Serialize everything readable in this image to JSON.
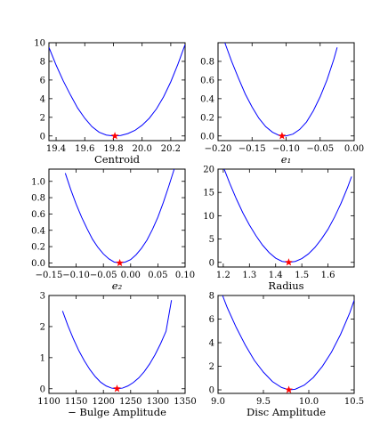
{
  "chart_data": [
    {
      "type": "line",
      "xlabel": "Centroid",
      "ylabel": "",
      "xlim": [
        19.35,
        20.3
      ],
      "ylim": [
        -0.5,
        10
      ],
      "xticks": [
        19.4,
        19.6,
        19.8,
        20.0,
        20.2
      ],
      "xtick_labels": [
        "19.4",
        "19.6",
        "19.8",
        "20.0",
        "20.2"
      ],
      "yticks": [
        0,
        2,
        4,
        6,
        8,
        10
      ],
      "ytick_labels": [
        "0",
        "2",
        "4",
        "6",
        "8",
        "10"
      ],
      "series": [
        {
          "x": [
            19.35,
            19.4,
            19.45,
            19.5,
            19.55,
            19.6,
            19.65,
            19.7,
            19.75,
            19.8,
            19.85,
            19.9,
            19.95,
            20.0,
            20.05,
            20.1,
            20.15,
            20.2,
            20.25,
            20.3
          ],
          "y": [
            9.5,
            7.6,
            5.9,
            4.4,
            3.0,
            1.9,
            1.0,
            0.4,
            0.1,
            0.0,
            0.05,
            0.25,
            0.6,
            1.15,
            1.9,
            2.9,
            4.2,
            5.8,
            7.7,
            9.8
          ]
        }
      ],
      "minimum": {
        "x": 19.81,
        "y": 0.0
      },
      "colors": {
        "curve": "#0000ff",
        "marker": "#ff0000"
      }
    },
    {
      "type": "line",
      "xlabel": "e₁",
      "ylabel": "",
      "xlim": [
        -0.2,
        0.0
      ],
      "ylim": [
        -0.05,
        1.0
      ],
      "xticks": [
        -0.2,
        -0.15,
        -0.1,
        -0.05,
        0.0
      ],
      "xtick_labels": [
        "−0.20",
        "−0.15",
        "−0.10",
        "−0.05",
        "0.00"
      ],
      "yticks": [
        0.0,
        0.2,
        0.4,
        0.6,
        0.8
      ],
      "ytick_labels": [
        "0.0",
        "0.2",
        "0.4",
        "0.6",
        "0.8"
      ],
      "series": [
        {
          "x": [
            -0.19,
            -0.18,
            -0.17,
            -0.16,
            -0.15,
            -0.14,
            -0.13,
            -0.12,
            -0.11,
            -0.1,
            -0.09,
            -0.08,
            -0.07,
            -0.06,
            -0.05,
            -0.04,
            -0.03,
            -0.025
          ],
          "y": [
            1.0,
            0.8,
            0.62,
            0.45,
            0.31,
            0.19,
            0.1,
            0.04,
            0.005,
            0.0,
            0.02,
            0.07,
            0.15,
            0.27,
            0.42,
            0.6,
            0.82,
            0.95
          ]
        }
      ],
      "minimum": {
        "x": -0.106,
        "y": 0.0
      },
      "colors": {
        "curve": "#0000ff",
        "marker": "#ff0000"
      }
    },
    {
      "type": "line",
      "xlabel": "e₂",
      "ylabel": "",
      "xlim": [
        -0.15,
        0.1
      ],
      "ylim": [
        -0.05,
        1.15
      ],
      "xticks": [
        -0.15,
        -0.1,
        -0.05,
        0.0,
        0.05,
        0.1
      ],
      "xtick_labels": [
        "−0.15",
        "−0.10",
        "−0.05",
        "0.00",
        "0.05",
        "0.10"
      ],
      "yticks": [
        0.0,
        0.2,
        0.4,
        0.6,
        0.8,
        1.0
      ],
      "ytick_labels": [
        "0.0",
        "0.2",
        "0.4",
        "0.6",
        "0.8",
        "1.0"
      ],
      "series": [
        {
          "x": [
            -0.12,
            -0.11,
            -0.1,
            -0.09,
            -0.08,
            -0.07,
            -0.06,
            -0.05,
            -0.04,
            -0.03,
            -0.02,
            -0.01,
            0.0,
            0.01,
            0.02,
            0.03,
            0.04,
            0.05,
            0.06,
            0.07,
            0.08
          ],
          "y": [
            1.1,
            0.9,
            0.72,
            0.56,
            0.42,
            0.29,
            0.19,
            0.11,
            0.05,
            0.01,
            0.0,
            0.01,
            0.04,
            0.1,
            0.18,
            0.28,
            0.41,
            0.56,
            0.74,
            0.94,
            1.15
          ]
        }
      ],
      "minimum": {
        "x": -0.02,
        "y": 0.0
      },
      "colors": {
        "curve": "#0000ff",
        "marker": "#ff0000"
      }
    },
    {
      "type": "line",
      "xlabel": "Radius",
      "ylabel": "",
      "xlim": [
        1.18,
        1.7
      ],
      "ylim": [
        -1,
        20
      ],
      "xticks": [
        1.2,
        1.3,
        1.4,
        1.5,
        1.6
      ],
      "xtick_labels": [
        "1.2",
        "1.3",
        "1.4",
        "1.5",
        "1.6"
      ],
      "yticks": [
        0,
        5,
        10,
        15,
        20
      ],
      "ytick_labels": [
        "0",
        "5",
        "10",
        "15",
        "20"
      ],
      "series": [
        {
          "x": [
            1.2,
            1.225,
            1.25,
            1.275,
            1.3,
            1.325,
            1.35,
            1.375,
            1.4,
            1.425,
            1.45,
            1.475,
            1.5,
            1.525,
            1.55,
            1.575,
            1.6,
            1.625,
            1.65,
            1.675,
            1.69
          ],
          "y": [
            20.5,
            16.9,
            13.6,
            10.6,
            8.0,
            5.7,
            3.7,
            2.1,
            0.9,
            0.2,
            0.0,
            0.2,
            0.8,
            1.8,
            3.2,
            5.0,
            7.1,
            9.7,
            12.7,
            16.1,
            18.4
          ]
        }
      ],
      "minimum": {
        "x": 1.45,
        "y": 0.0
      },
      "colors": {
        "curve": "#0000ff",
        "marker": "#ff0000"
      }
    },
    {
      "type": "line",
      "xlabel": "− Bulge Amplitude",
      "ylabel": "",
      "xlim": [
        1100,
        1350
      ],
      "ylim": [
        -0.15,
        3
      ],
      "xticks": [
        1100,
        1150,
        1200,
        1250,
        1300,
        1350
      ],
      "xtick_labels": [
        "1100",
        "1150",
        "1200",
        "1250",
        "1300",
        "1350"
      ],
      "yticks": [
        0,
        1,
        2,
        3
      ],
      "ytick_labels": [
        "0",
        "1",
        "2",
        "3"
      ],
      "series": [
        {
          "x": [
            1125,
            1135,
            1145,
            1155,
            1165,
            1175,
            1185,
            1195,
            1205,
            1215,
            1225,
            1235,
            1245,
            1255,
            1265,
            1275,
            1285,
            1295,
            1305,
            1315,
            1325
          ],
          "y": [
            2.5,
            2.02,
            1.6,
            1.22,
            0.9,
            0.62,
            0.39,
            0.21,
            0.09,
            0.02,
            0.0,
            0.02,
            0.09,
            0.2,
            0.35,
            0.55,
            0.8,
            1.1,
            1.45,
            1.85,
            2.85
          ]
        }
      ],
      "minimum": {
        "x": 1225,
        "y": 0.0
      },
      "colors": {
        "curve": "#0000ff",
        "marker": "#ff0000"
      }
    },
    {
      "type": "line",
      "xlabel": "Disc Amplitude",
      "ylabel": "",
      "xlim": [
        9.0,
        10.5
      ],
      "ylim": [
        -0.3,
        8
      ],
      "xticks": [
        9.0,
        9.5,
        10.0,
        10.5
      ],
      "xtick_labels": [
        "9.0",
        "9.5",
        "10.0",
        "10.5"
      ],
      "yticks": [
        0,
        2,
        4,
        6,
        8
      ],
      "ytick_labels": [
        "0",
        "2",
        "4",
        "6",
        "8"
      ],
      "series": [
        {
          "x": [
            9.05,
            9.1,
            9.2,
            9.3,
            9.4,
            9.5,
            9.6,
            9.7,
            9.78,
            9.85,
            9.95,
            10.05,
            10.15,
            10.25,
            10.35,
            10.45,
            10.5
          ],
          "y": [
            8.0,
            7.0,
            5.3,
            3.8,
            2.5,
            1.5,
            0.7,
            0.2,
            0.0,
            0.05,
            0.4,
            1.05,
            2.0,
            3.2,
            4.7,
            6.5,
            7.6
          ]
        }
      ],
      "minimum": {
        "x": 9.78,
        "y": 0.0
      },
      "colors": {
        "curve": "#0000ff",
        "marker": "#ff0000"
      }
    }
  ]
}
